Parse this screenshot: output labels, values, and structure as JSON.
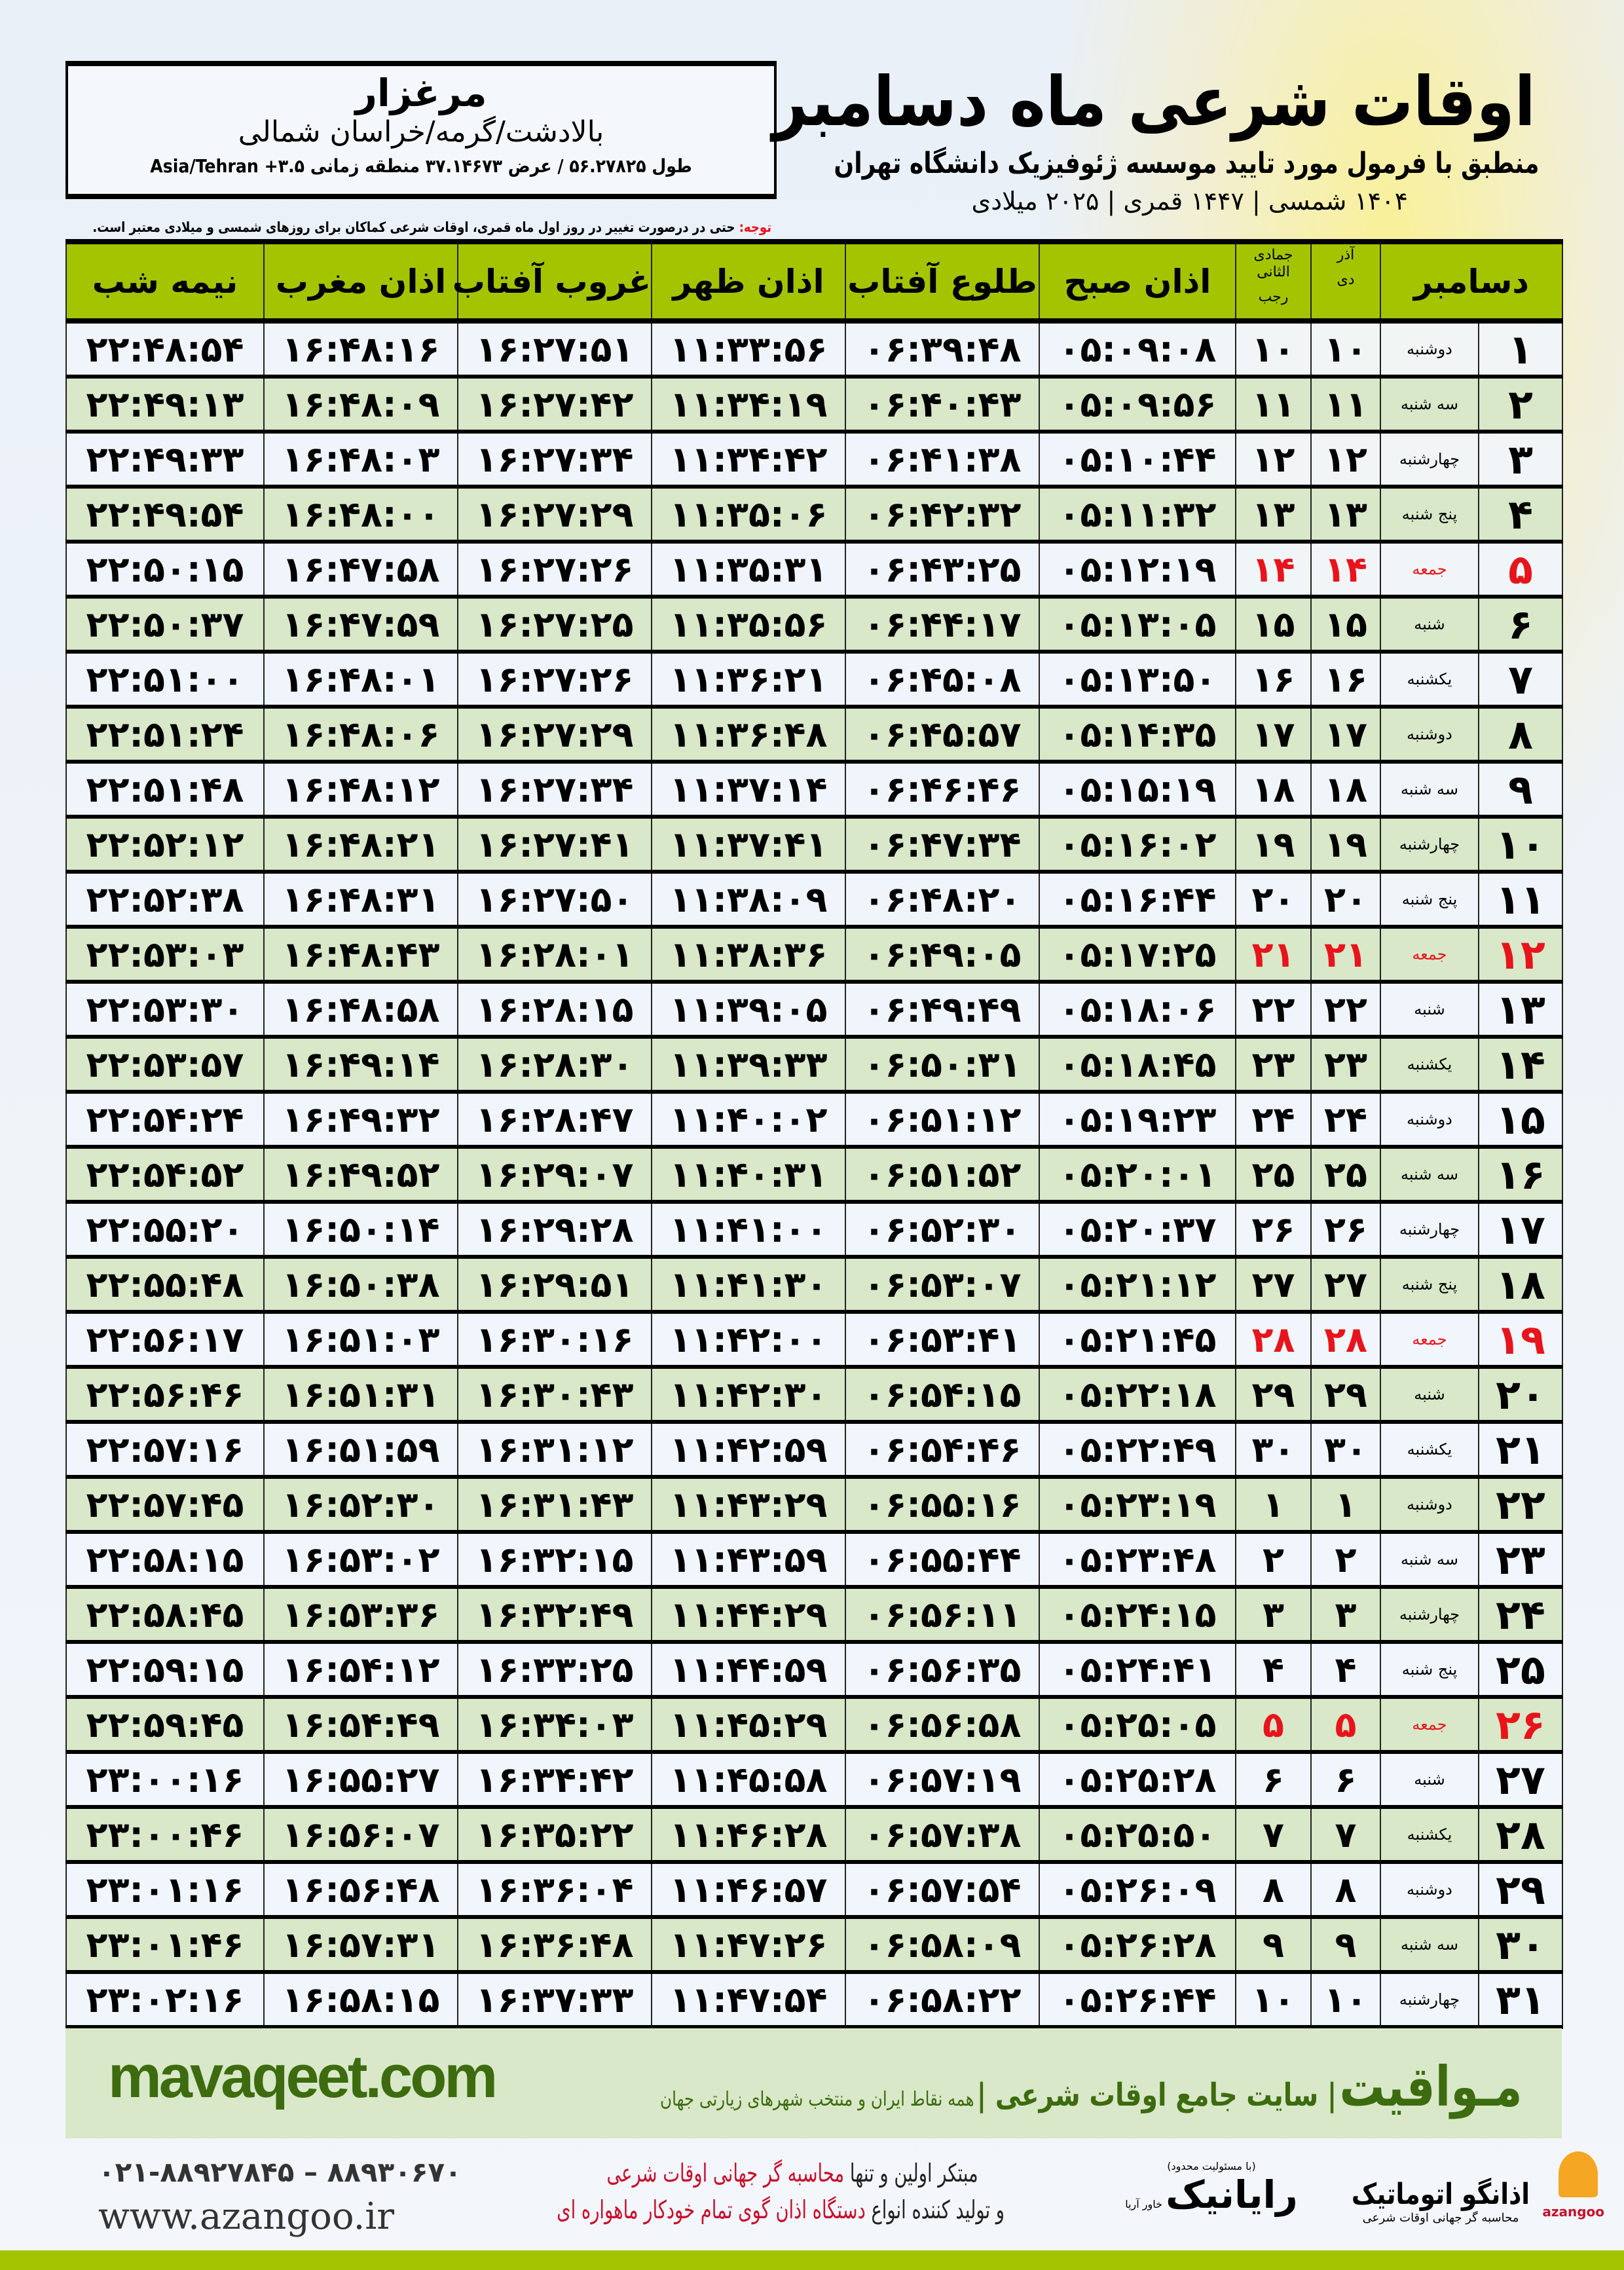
{
  "header": {
    "title": "اوقات شرعی ماه دسامبر",
    "subtitle": "منطبق با فرمول مورد تایید موسسه ژئوفیزیک دانشگاه تهران",
    "dates": "۱۴۰۴ شمسی | ۱۴۴۷ قمری | ۲۰۲۵ میلادی"
  },
  "location": {
    "city": "مرغزار",
    "region": "بالادشت/گرمه/خراسان شمالی",
    "coords": "طول ۵۶.۲۷۸۲۵ / عرض ۳۷.۱۴۶۷۳ منطقه زمانی",
    "timezone": "Asia/Tehran +۳.۵"
  },
  "note": {
    "label": "توجه:",
    "text": " حتی در درصورت تغییر در روز اول ماه قمری، اوقات شرعی کماکان برای روزهای شمسی و میلادی معتبر است."
  },
  "table": {
    "headers": {
      "month": "دسامبر",
      "azar": "آذر",
      "dey": "دی",
      "jumada": "جمادی الثانی",
      "rajab": "رجب",
      "fajr": "اذان صبح",
      "sunrise": "طلوع آفتاب",
      "dhuhr": "اذان ظهر",
      "sunset": "غروب آفتاب",
      "maghrib": "اذان مغرب",
      "midnight": "نیمه شب"
    },
    "holiday_weekday": "جمعه",
    "rows": [
      [
        "۱",
        "دوشنبه",
        "۱۰",
        "۱۰",
        "۰۵:۰۹:۰۸",
        "۰۶:۳۹:۴۸",
        "۱۱:۳۳:۵۶",
        "۱۶:۲۷:۵۱",
        "۱۶:۴۸:۱۶",
        "۲۲:۴۸:۵۴"
      ],
      [
        "۲",
        "سه شنبه",
        "۱۱",
        "۱۱",
        "۰۵:۰۹:۵۶",
        "۰۶:۴۰:۴۳",
        "۱۱:۳۴:۱۹",
        "۱۶:۲۷:۴۲",
        "۱۶:۴۸:۰۹",
        "۲۲:۴۹:۱۳"
      ],
      [
        "۳",
        "چهارشنبه",
        "۱۲",
        "۱۲",
        "۰۵:۱۰:۴۴",
        "۰۶:۴۱:۳۸",
        "۱۱:۳۴:۴۲",
        "۱۶:۲۷:۳۴",
        "۱۶:۴۸:۰۳",
        "۲۲:۴۹:۳۳"
      ],
      [
        "۴",
        "پنج شنبه",
        "۱۳",
        "۱۳",
        "۰۵:۱۱:۳۲",
        "۰۶:۴۲:۳۲",
        "۱۱:۳۵:۰۶",
        "۱۶:۲۷:۲۹",
        "۱۶:۴۸:۰۰",
        "۲۲:۴۹:۵۴"
      ],
      [
        "۵",
        "جمعه",
        "۱۴",
        "۱۴",
        "۰۵:۱۲:۱۹",
        "۰۶:۴۳:۲۵",
        "۱۱:۳۵:۳۱",
        "۱۶:۲۷:۲۶",
        "۱۶:۴۷:۵۸",
        "۲۲:۵۰:۱۵"
      ],
      [
        "۶",
        "شنبه",
        "۱۵",
        "۱۵",
        "۰۵:۱۳:۰۵",
        "۰۶:۴۴:۱۷",
        "۱۱:۳۵:۵۶",
        "۱۶:۲۷:۲۵",
        "۱۶:۴۷:۵۹",
        "۲۲:۵۰:۳۷"
      ],
      [
        "۷",
        "یکشنبه",
        "۱۶",
        "۱۶",
        "۰۵:۱۳:۵۰",
        "۰۶:۴۵:۰۸",
        "۱۱:۳۶:۲۱",
        "۱۶:۲۷:۲۶",
        "۱۶:۴۸:۰۱",
        "۲۲:۵۱:۰۰"
      ],
      [
        "۸",
        "دوشنبه",
        "۱۷",
        "۱۷",
        "۰۵:۱۴:۳۵",
        "۰۶:۴۵:۵۷",
        "۱۱:۳۶:۴۸",
        "۱۶:۲۷:۲۹",
        "۱۶:۴۸:۰۶",
        "۲۲:۵۱:۲۴"
      ],
      [
        "۹",
        "سه شنبه",
        "۱۸",
        "۱۸",
        "۰۵:۱۵:۱۹",
        "۰۶:۴۶:۴۶",
        "۱۱:۳۷:۱۴",
        "۱۶:۲۷:۳۴",
        "۱۶:۴۸:۱۲",
        "۲۲:۵۱:۴۸"
      ],
      [
        "۱۰",
        "چهارشنبه",
        "۱۹",
        "۱۹",
        "۰۵:۱۶:۰۲",
        "۰۶:۴۷:۳۴",
        "۱۱:۳۷:۴۱",
        "۱۶:۲۷:۴۱",
        "۱۶:۴۸:۲۱",
        "۲۲:۵۲:۱۲"
      ],
      [
        "۱۱",
        "پنج شنبه",
        "۲۰",
        "۲۰",
        "۰۵:۱۶:۴۴",
        "۰۶:۴۸:۲۰",
        "۱۱:۳۸:۰۹",
        "۱۶:۲۷:۵۰",
        "۱۶:۴۸:۳۱",
        "۲۲:۵۲:۳۸"
      ],
      [
        "۱۲",
        "جمعه",
        "۲۱",
        "۲۱",
        "۰۵:۱۷:۲۵",
        "۰۶:۴۹:۰۵",
        "۱۱:۳۸:۳۶",
        "۱۶:۲۸:۰۱",
        "۱۶:۴۸:۴۳",
        "۲۲:۵۳:۰۳"
      ],
      [
        "۱۳",
        "شنبه",
        "۲۲",
        "۲۲",
        "۰۵:۱۸:۰۶",
        "۰۶:۴۹:۴۹",
        "۱۱:۳۹:۰۵",
        "۱۶:۲۸:۱۵",
        "۱۶:۴۸:۵۸",
        "۲۲:۵۳:۳۰"
      ],
      [
        "۱۴",
        "یکشنبه",
        "۲۳",
        "۲۳",
        "۰۵:۱۸:۴۵",
        "۰۶:۵۰:۳۱",
        "۱۱:۳۹:۳۳",
        "۱۶:۲۸:۳۰",
        "۱۶:۴۹:۱۴",
        "۲۲:۵۳:۵۷"
      ],
      [
        "۱۵",
        "دوشنبه",
        "۲۴",
        "۲۴",
        "۰۵:۱۹:۲۳",
        "۰۶:۵۱:۱۲",
        "۱۱:۴۰:۰۲",
        "۱۶:۲۸:۴۷",
        "۱۶:۴۹:۳۲",
        "۲۲:۵۴:۲۴"
      ],
      [
        "۱۶",
        "سه شنبه",
        "۲۵",
        "۲۵",
        "۰۵:۲۰:۰۱",
        "۰۶:۵۱:۵۲",
        "۱۱:۴۰:۳۱",
        "۱۶:۲۹:۰۷",
        "۱۶:۴۹:۵۲",
        "۲۲:۵۴:۵۲"
      ],
      [
        "۱۷",
        "چهارشنبه",
        "۲۶",
        "۲۶",
        "۰۵:۲۰:۳۷",
        "۰۶:۵۲:۳۰",
        "۱۱:۴۱:۰۰",
        "۱۶:۲۹:۲۸",
        "۱۶:۵۰:۱۴",
        "۲۲:۵۵:۲۰"
      ],
      [
        "۱۸",
        "پنج شنبه",
        "۲۷",
        "۲۷",
        "۰۵:۲۱:۱۲",
        "۰۶:۵۳:۰۷",
        "۱۱:۴۱:۳۰",
        "۱۶:۲۹:۵۱",
        "۱۶:۵۰:۳۸",
        "۲۲:۵۵:۴۸"
      ],
      [
        "۱۹",
        "جمعه",
        "۲۸",
        "۲۸",
        "۰۵:۲۱:۴۵",
        "۰۶:۵۳:۴۱",
        "۱۱:۴۲:۰۰",
        "۱۶:۳۰:۱۶",
        "۱۶:۵۱:۰۳",
        "۲۲:۵۶:۱۷"
      ],
      [
        "۲۰",
        "شنبه",
        "۲۹",
        "۲۹",
        "۰۵:۲۲:۱۸",
        "۰۶:۵۴:۱۵",
        "۱۱:۴۲:۳۰",
        "۱۶:۳۰:۴۳",
        "۱۶:۵۱:۳۱",
        "۲۲:۵۶:۴۶"
      ],
      [
        "۲۱",
        "یکشنبه",
        "۳۰",
        "۳۰",
        "۰۵:۲۲:۴۹",
        "۰۶:۵۴:۴۶",
        "۱۱:۴۲:۵۹",
        "۱۶:۳۱:۱۲",
        "۱۶:۵۱:۵۹",
        "۲۲:۵۷:۱۶"
      ],
      [
        "۲۲",
        "دوشنبه",
        "۱",
        "۱",
        "۰۵:۲۳:۱۹",
        "۰۶:۵۵:۱۶",
        "۱۱:۴۳:۲۹",
        "۱۶:۳۱:۴۳",
        "۱۶:۵۲:۳۰",
        "۲۲:۵۷:۴۵"
      ],
      [
        "۲۳",
        "سه شنبه",
        "۲",
        "۲",
        "۰۵:۲۳:۴۸",
        "۰۶:۵۵:۴۴",
        "۱۱:۴۳:۵۹",
        "۱۶:۳۲:۱۵",
        "۱۶:۵۳:۰۲",
        "۲۲:۵۸:۱۵"
      ],
      [
        "۲۴",
        "چهارشنبه",
        "۳",
        "۳",
        "۰۵:۲۴:۱۵",
        "۰۶:۵۶:۱۱",
        "۱۱:۴۴:۲۹",
        "۱۶:۳۲:۴۹",
        "۱۶:۵۳:۳۶",
        "۲۲:۵۸:۴۵"
      ],
      [
        "۲۵",
        "پنج شنبه",
        "۴",
        "۴",
        "۰۵:۲۴:۴۱",
        "۰۶:۵۶:۳۵",
        "۱۱:۴۴:۵۹",
        "۱۶:۳۳:۲۵",
        "۱۶:۵۴:۱۲",
        "۲۲:۵۹:۱۵"
      ],
      [
        "۲۶",
        "جمعه",
        "۵",
        "۵",
        "۰۵:۲۵:۰۵",
        "۰۶:۵۶:۵۸",
        "۱۱:۴۵:۲۹",
        "۱۶:۳۴:۰۳",
        "۱۶:۵۴:۴۹",
        "۲۲:۵۹:۴۵"
      ],
      [
        "۲۷",
        "شنبه",
        "۶",
        "۶",
        "۰۵:۲۵:۲۸",
        "۰۶:۵۷:۱۹",
        "۱۱:۴۵:۵۸",
        "۱۶:۳۴:۴۲",
        "۱۶:۵۵:۲۷",
        "۲۳:۰۰:۱۶"
      ],
      [
        "۲۸",
        "یکشنبه",
        "۷",
        "۷",
        "۰۵:۲۵:۵۰",
        "۰۶:۵۷:۳۸",
        "۱۱:۴۶:۲۸",
        "۱۶:۳۵:۲۲",
        "۱۶:۵۶:۰۷",
        "۲۳:۰۰:۴۶"
      ],
      [
        "۲۹",
        "دوشنبه",
        "۸",
        "۸",
        "۰۵:۲۶:۰۹",
        "۰۶:۵۷:۵۴",
        "۱۱:۴۶:۵۷",
        "۱۶:۳۶:۰۴",
        "۱۶:۵۶:۴۸",
        "۲۳:۰۱:۱۶"
      ],
      [
        "۳۰",
        "سه شنبه",
        "۹",
        "۹",
        "۰۵:۲۶:۲۸",
        "۰۶:۵۸:۰۹",
        "۱۱:۴۷:۲۶",
        "۱۶:۳۶:۴۸",
        "۱۶:۵۷:۳۱",
        "۲۳:۰۱:۴۶"
      ],
      [
        "۳۱",
        "چهارشنبه",
        "۱۰",
        "۱۰",
        "۰۵:۲۶:۴۴",
        "۰۶:۵۸:۲۲",
        "۱۱:۴۷:۵۴",
        "۱۶:۳۷:۳۳",
        "۱۶:۵۸:۱۵",
        "۲۳:۰۲:۱۶"
      ]
    ]
  },
  "footer": {
    "brand": "مـواقیت",
    "tagline": "| سایت جامع اوقات شرعی |",
    "tagline_sub": "همه نقاط ایران و منتخب شهرهای زیارتی جهان",
    "url": "mavaqeet.com",
    "phone": "۰۲۱-۸۸۹۲۷۸۴۵ – ۸۸۹۳۰۶۷۰",
    "website": "www.azangoo.ir",
    "promo_line1_a": "مبتکر اولین و تنها ",
    "promo_line1_b": "محاسبه گر جهانی اوقات شرعی",
    "promo_line2_a": "و تولید کننده انواع ",
    "promo_line2_b": "دستگاه اذان گوی تمام خودکار ماهواره ای",
    "logo_raynik": "رایانیک",
    "logo_raynik_sub": "خاور آریا",
    "logo_raynik_note": "(با مسئولیت محدود)",
    "logo_azangoo": "اذانگو اتوماتیک",
    "logo_azangoo_sub": "محاسبه گر جهانی اوقات شرعی",
    "logo_azangoo_en": "azangoo"
  },
  "colors": {
    "header_green": "#a5c400",
    "row_green": "#d8e8c8",
    "holiday_red": "#e8141c",
    "brand_green": "#3d6b0f",
    "promo_red": "#c8102e"
  }
}
